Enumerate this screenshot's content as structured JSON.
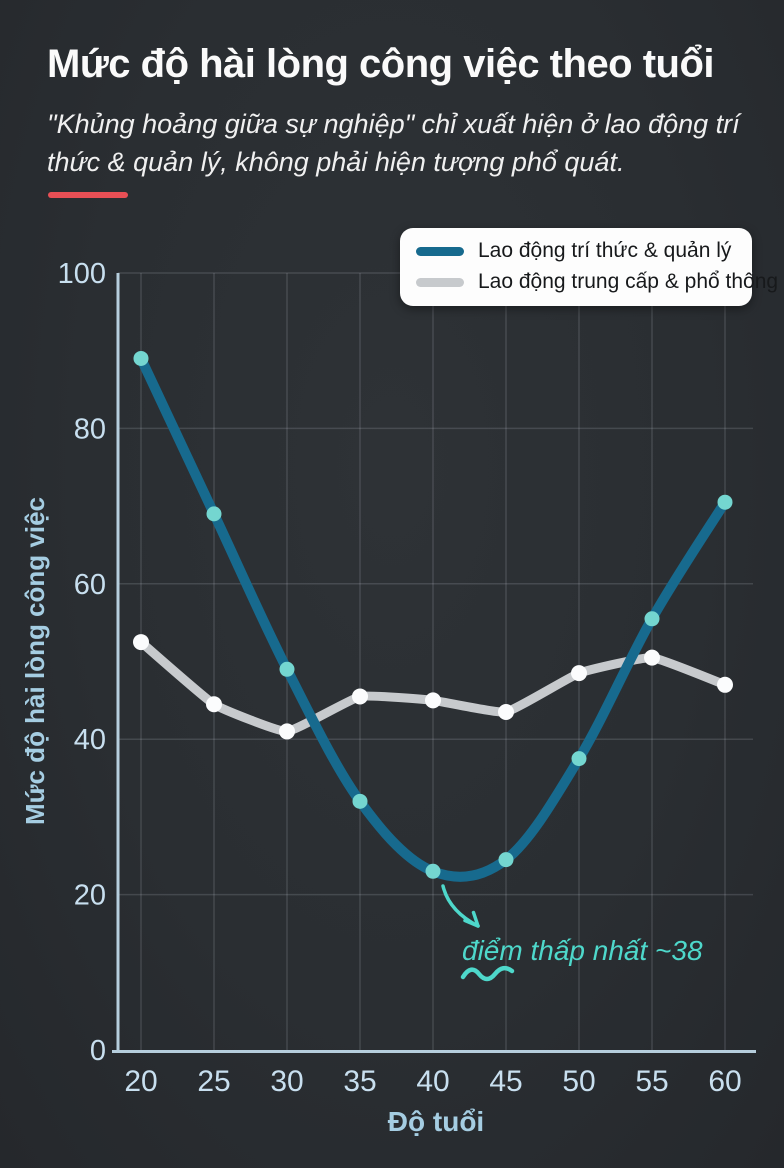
{
  "header": {
    "title": "Mức độ hài lòng công việc theo tuổi",
    "subtitle": "\"Khủng hoảng giữa sự nghiệp\" chỉ xuất hiện ở lao động trí thức & quản lý, không phải hiện tượng phổ quát.",
    "accent_color": "#e84f55"
  },
  "chart_data": {
    "type": "line",
    "x": [
      20,
      25,
      30,
      35,
      40,
      45,
      50,
      55,
      60
    ],
    "series": [
      {
        "name": "Lao động trí thức & quản lý",
        "color": "#176a8e",
        "marker_color": "#74d6d0",
        "smooth": 1,
        "line_width": 10,
        "marker_radius": 7.5,
        "values": [
          89,
          69,
          49,
          32,
          23,
          24.5,
          37.5,
          55.5,
          70.5
        ]
      },
      {
        "name": "Lao động trung cấp & phổ thông",
        "color": "#c7cacd",
        "marker_color": "#fbfcfd",
        "smooth": 0.35,
        "line_width": 9,
        "marker_radius": 8,
        "values": [
          52.5,
          44.5,
          41,
          45.5,
          45,
          43.5,
          48.5,
          50.5,
          47
        ]
      }
    ],
    "xlabel": "Độ tuổi",
    "ylabel": "Mức độ hài lòng công việc",
    "ylim": [
      0,
      100
    ],
    "yticks": [
      0,
      20,
      40,
      60,
      80,
      100
    ],
    "grid": true,
    "legend_position": "top-right",
    "annotation": {
      "text": "điểm thấp nhất ~38",
      "color": "#4ed8cb"
    }
  },
  "theme": {
    "axis_color": "#b6cedd",
    "tick_label_color": "#c8dfef",
    "axis_title_color": "#a5cde2",
    "grid_color": "rgba(200,210,220,0.17)"
  }
}
